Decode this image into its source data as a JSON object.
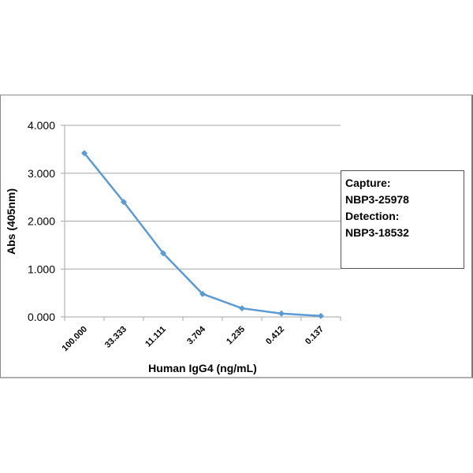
{
  "chart_data": {
    "type": "line",
    "title": "",
    "xlabel": "Human IgG4 (ng/mL)",
    "ylabel": "Abs (405nm)",
    "categories": [
      "100.000",
      "33.333",
      "11.111",
      "3.704",
      "1.235",
      "0.412",
      "0.137"
    ],
    "series": [
      {
        "name": "Abs (405nm)",
        "color": "#5b9bd5",
        "marker": "diamond",
        "values": [
          3.42,
          2.4,
          1.33,
          0.48,
          0.18,
          0.07,
          0.02
        ]
      }
    ],
    "ylim": [
      0,
      4
    ],
    "yticks": [
      "0.000",
      "1.000",
      "2.000",
      "3.000",
      "4.000"
    ],
    "grid": {
      "horizontal": true,
      "vertical": false,
      "color": "#a6a6a6"
    },
    "legend_position": "right",
    "annotation_lines": [
      "Capture:",
      "NBP3-25978",
      "Detection:",
      "NBP3-18532"
    ]
  },
  "axes": {
    "x_title": "Human IgG4 (ng/mL)",
    "y_title": "Abs (405nm)"
  },
  "legend": {
    "lines": [
      "Capture:",
      "NBP3-25978",
      "Detection:",
      "NBP3-18532"
    ]
  }
}
